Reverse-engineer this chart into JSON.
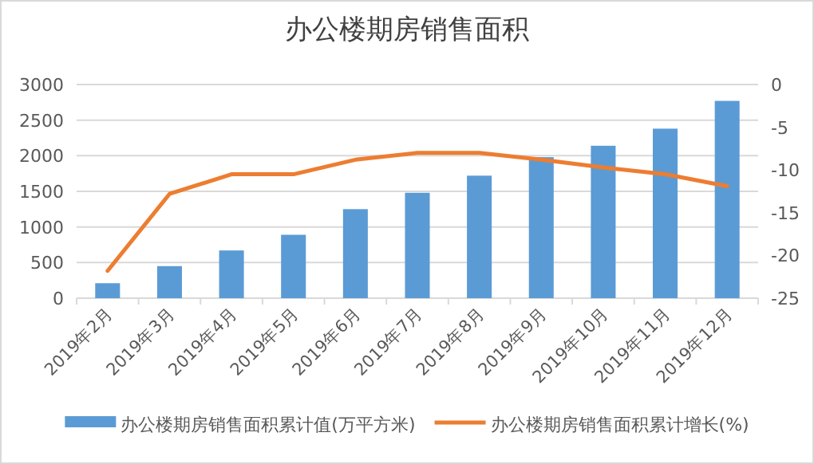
{
  "chart_data": {
    "type": "bar",
    "title": "办公楼期房销售面积",
    "categories": [
      "2019年2月",
      "2019年3月",
      "2019年4月",
      "2019年5月",
      "2019年6月",
      "2019年7月",
      "2019年8月",
      "2019年9月",
      "2019年10月",
      "2019年11月",
      "2019年12月"
    ],
    "series": [
      {
        "name": "办公楼期房销售面积累计值(万平方米)",
        "color": "#5b9bd5",
        "values": [
          210,
          450,
          670,
          890,
          1250,
          1480,
          1720,
          1980,
          2140,
          2380,
          2770
        ]
      },
      {
        "name": "办公楼期房销售面积累计增长(%)",
        "type": "line",
        "axis": "y2",
        "color": "#ed7d31",
        "values": [
          -21.8,
          -12.8,
          -10.5,
          -10.5,
          -8.8,
          -8.0,
          -8.0,
          -8.8,
          -9.7,
          -10.5,
          -11.9
        ]
      }
    ],
    "ylim": [
      0,
      3000
    ],
    "yticks": [
      0,
      500,
      1000,
      1500,
      2000,
      2500,
      3000
    ],
    "y2lim": [
      -25,
      0
    ],
    "y2ticks": [
      -25,
      -20,
      -15,
      -10,
      -5,
      0
    ],
    "grid": "y",
    "legend": "bottom"
  }
}
